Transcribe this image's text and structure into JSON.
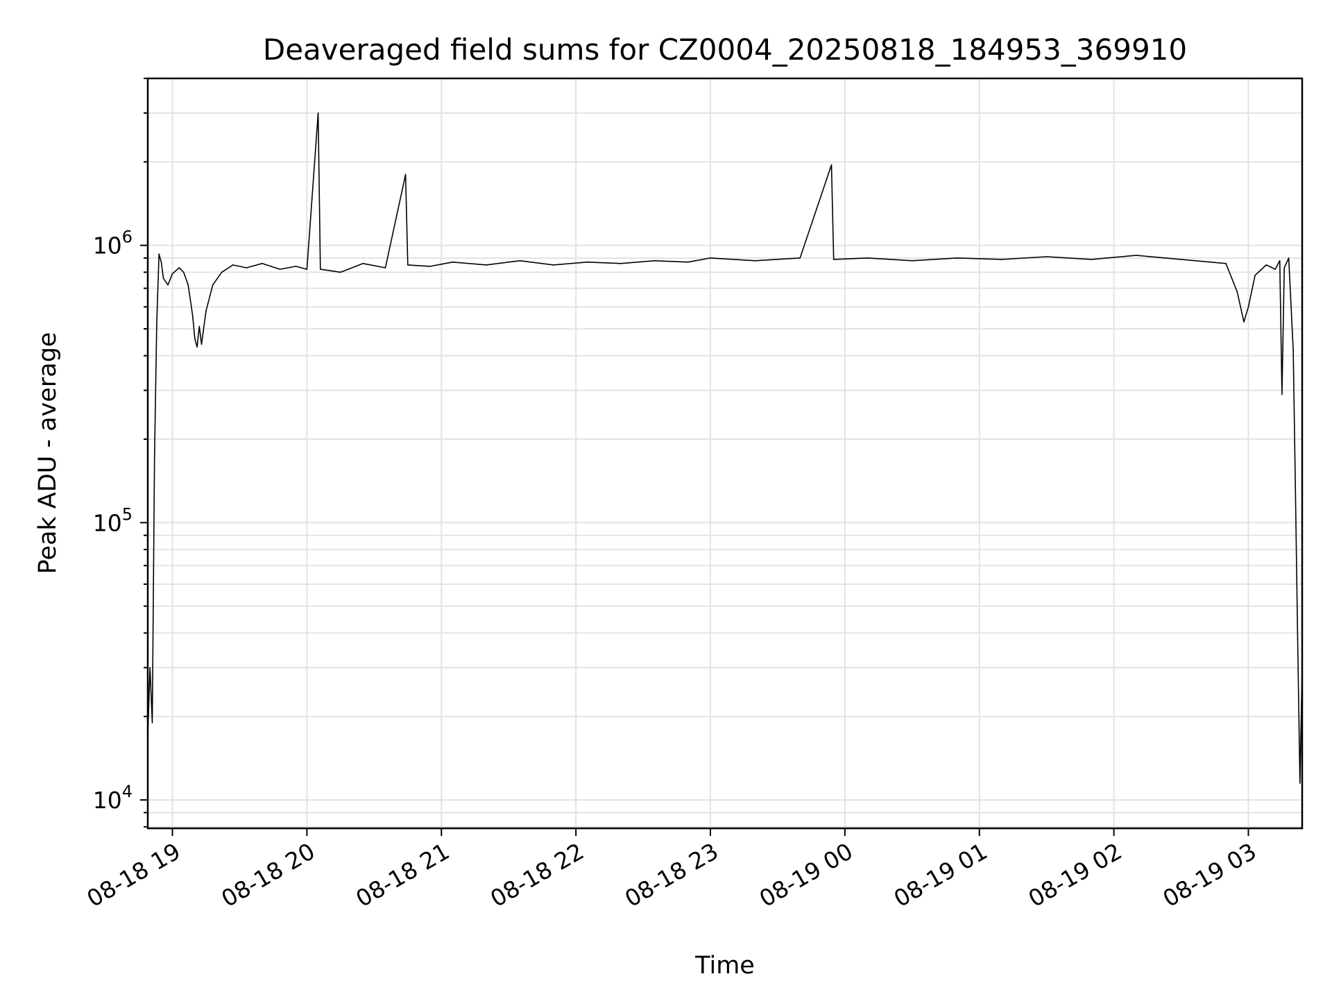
{
  "chart_data": {
    "type": "line",
    "title": "Deaveraged field sums for CZ0004_20250818_184953_369910",
    "xlabel": "Time",
    "ylabel": "Peak ADU - average",
    "yscale": "log",
    "ylim": [
      7900,
      4000000
    ],
    "xlim": [
      "2025-08-18 18:49",
      "2025-08-19 03:24"
    ],
    "x_ticks": [
      {
        "value": "2025-08-18 19:00",
        "label": "08-18 19"
      },
      {
        "value": "2025-08-18 20:00",
        "label": "08-18 20"
      },
      {
        "value": "2025-08-18 21:00",
        "label": "08-18 21"
      },
      {
        "value": "2025-08-18 22:00",
        "label": "08-18 22"
      },
      {
        "value": "2025-08-18 23:00",
        "label": "08-18 23"
      },
      {
        "value": "2025-08-19 00:00",
        "label": "08-19 00"
      },
      {
        "value": "2025-08-19 01:00",
        "label": "08-19 01"
      },
      {
        "value": "2025-08-19 02:00",
        "label": "08-19 02"
      },
      {
        "value": "2025-08-19 03:00",
        "label": "08-19 03"
      }
    ],
    "y_ticks": [
      {
        "value": 10000,
        "base": "10",
        "exp": "4"
      },
      {
        "value": 100000,
        "base": "10",
        "exp": "5"
      },
      {
        "value": 1000000,
        "base": "10",
        "exp": "6"
      }
    ],
    "grid": true,
    "line_color": "#000000",
    "series": [
      {
        "name": "",
        "points": [
          [
            "2025-08-18 18:49",
            17000
          ],
          [
            "2025-08-18 18:50",
            30000
          ],
          [
            "2025-08-18 18:51",
            19000
          ],
          [
            "2025-08-18 18:52",
            170000
          ],
          [
            "2025-08-18 18:53",
            520000
          ],
          [
            "2025-08-18 18:54",
            930000
          ],
          [
            "2025-08-18 18:55",
            870000
          ],
          [
            "2025-08-18 18:56",
            760000
          ],
          [
            "2025-08-18 18:58",
            720000
          ],
          [
            "2025-08-18 19:00",
            790000
          ],
          [
            "2025-08-18 19:03",
            830000
          ],
          [
            "2025-08-18 19:05",
            800000
          ],
          [
            "2025-08-18 19:07",
            720000
          ],
          [
            "2025-08-18 19:09",
            560000
          ],
          [
            "2025-08-18 19:10",
            460000
          ],
          [
            "2025-08-18 19:11",
            430000
          ],
          [
            "2025-08-18 19:12",
            510000
          ],
          [
            "2025-08-18 19:13",
            440000
          ],
          [
            "2025-08-18 19:15",
            580000
          ],
          [
            "2025-08-18 19:18",
            720000
          ],
          [
            "2025-08-18 19:22",
            800000
          ],
          [
            "2025-08-18 19:27",
            850000
          ],
          [
            "2025-08-18 19:33",
            830000
          ],
          [
            "2025-08-18 19:40",
            860000
          ],
          [
            "2025-08-18 19:48",
            820000
          ],
          [
            "2025-08-18 19:55",
            840000
          ],
          [
            "2025-08-18 20:00",
            820000
          ],
          [
            "2025-08-18 20:05",
            3000000
          ],
          [
            "2025-08-18 20:06",
            820000
          ],
          [
            "2025-08-18 20:15",
            800000
          ],
          [
            "2025-08-18 20:25",
            860000
          ],
          [
            "2025-08-18 20:35",
            830000
          ],
          [
            "2025-08-18 20:44",
            1800000
          ],
          [
            "2025-08-18 20:45",
            850000
          ],
          [
            "2025-08-18 20:55",
            840000
          ],
          [
            "2025-08-18 21:05",
            870000
          ],
          [
            "2025-08-18 21:20",
            850000
          ],
          [
            "2025-08-18 21:35",
            880000
          ],
          [
            "2025-08-18 21:50",
            850000
          ],
          [
            "2025-08-18 22:05",
            870000
          ],
          [
            "2025-08-18 22:20",
            860000
          ],
          [
            "2025-08-18 22:35",
            880000
          ],
          [
            "2025-08-18 22:50",
            870000
          ],
          [
            "2025-08-18 23:00",
            900000
          ],
          [
            "2025-08-18 23:20",
            880000
          ],
          [
            "2025-08-18 23:40",
            900000
          ],
          [
            "2025-08-18 23:54",
            1950000
          ],
          [
            "2025-08-18 23:55",
            890000
          ],
          [
            "2025-08-19 00:10",
            900000
          ],
          [
            "2025-08-19 00:30",
            880000
          ],
          [
            "2025-08-19 00:50",
            900000
          ],
          [
            "2025-08-19 01:10",
            890000
          ],
          [
            "2025-08-19 01:30",
            910000
          ],
          [
            "2025-08-19 01:50",
            890000
          ],
          [
            "2025-08-19 02:10",
            920000
          ],
          [
            "2025-08-19 02:30",
            890000
          ],
          [
            "2025-08-19 02:50",
            860000
          ],
          [
            "2025-08-19 02:55",
            680000
          ],
          [
            "2025-08-19 02:58",
            530000
          ],
          [
            "2025-08-19 03:00",
            600000
          ],
          [
            "2025-08-19 03:03",
            780000
          ],
          [
            "2025-08-19 03:08",
            850000
          ],
          [
            "2025-08-19 03:12",
            820000
          ],
          [
            "2025-08-19 03:14",
            880000
          ],
          [
            "2025-08-19 03:15",
            290000
          ],
          [
            "2025-08-19 03:16",
            830000
          ],
          [
            "2025-08-19 03:18",
            900000
          ],
          [
            "2025-08-19 03:20",
            420000
          ],
          [
            "2025-08-19 03:21",
            130000
          ],
          [
            "2025-08-19 03:22",
            38000
          ],
          [
            "2025-08-19 03:23",
            11500
          ],
          [
            "2025-08-19 03:24",
            30000
          ]
        ]
      }
    ]
  }
}
